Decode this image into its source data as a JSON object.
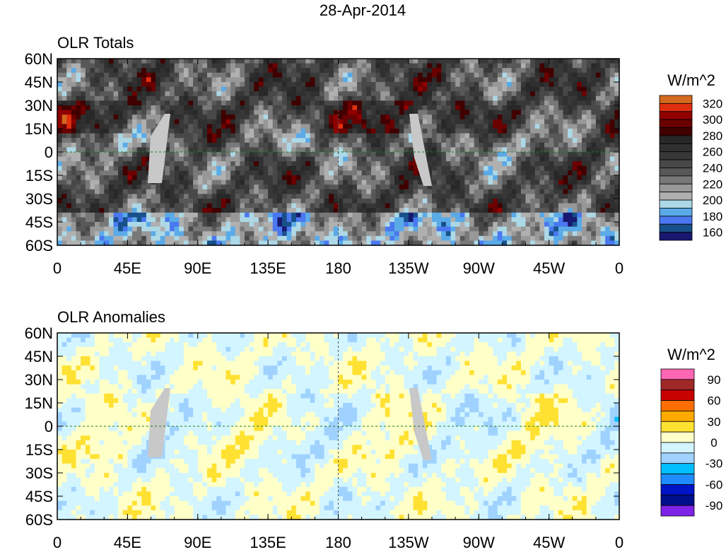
{
  "title": "28-Apr-2014",
  "panels": [
    {
      "title": "OLR Totals",
      "units": "W/m^2",
      "levels": [
        160,
        170,
        180,
        190,
        200,
        210,
        220,
        230,
        240,
        250,
        260,
        270,
        280,
        290,
        300,
        310,
        320
      ],
      "colors": [
        "#181870",
        "#18508a",
        "#4a78f0",
        "#5aaae8",
        "#add8e6",
        "#b0b0b0",
        "#989898",
        "#787878",
        "#585858",
        "#484848",
        "#383838",
        "#303030",
        "#282828",
        "#400000",
        "#6a0000",
        "#900000",
        "#e03010",
        "#d2691e"
      ],
      "labels": [
        "320",
        "300",
        "280",
        "260",
        "240",
        "220",
        "200",
        "180",
        "160"
      ]
    },
    {
      "title": "OLR Anomalies",
      "units": "W/m^2",
      "levels": [
        -90,
        -75,
        -60,
        -45,
        -30,
        -15,
        0,
        15,
        30,
        45,
        60,
        75,
        90
      ],
      "colors": [
        "#7f22e8",
        "#000f8a",
        "#0014c8",
        "#1e8cff",
        "#00bfff",
        "#a0d2ff",
        "#d2f5ff",
        "#ffffc8",
        "#ffe132",
        "#ffaa00",
        "#ff6e00",
        "#c80000",
        "#a02828",
        "#ff66b4"
      ],
      "labels": [
        "90",
        "60",
        "30",
        "0",
        "-30",
        "-60",
        "-90"
      ]
    }
  ],
  "lat_labels": [
    "60N",
    "45N",
    "30N",
    "15N",
    "0",
    "15S",
    "30S",
    "45S",
    "60S"
  ],
  "lon_labels": [
    "0",
    "45E",
    "90E",
    "135E",
    "180",
    "135W",
    "90W",
    "45W",
    "0"
  ],
  "colors": {
    "coast": "#1e7d1e",
    "missing": "#c8c8c8"
  }
}
